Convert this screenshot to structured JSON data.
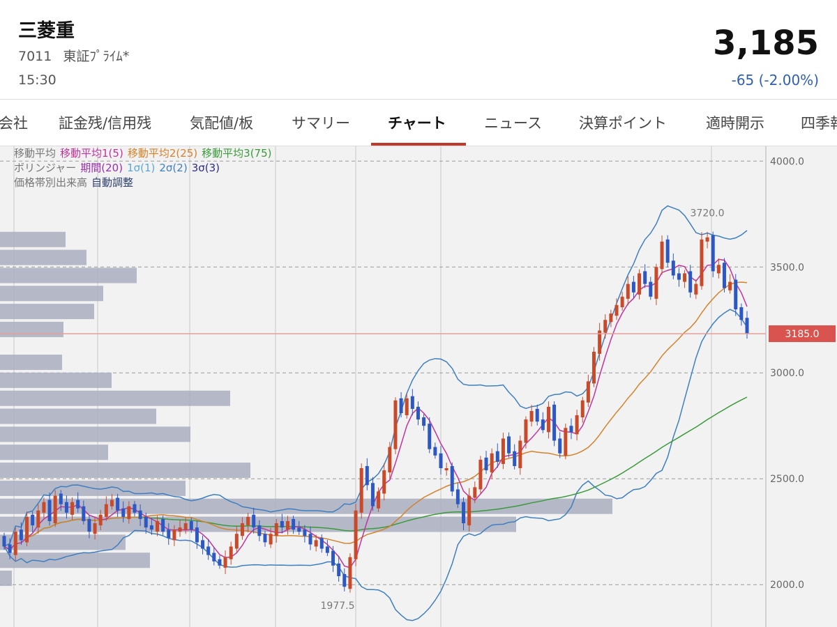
{
  "header": {
    "name": "三菱重",
    "code": "7011",
    "market": "東証ﾌﾟﾗｲﾑ*",
    "time": "15:30",
    "price": "3,185",
    "change": "-65 (-2.00%)"
  },
  "tabs": [
    "会社",
    "証金残/信用残",
    "気配値/板",
    "サマリー",
    "チャート",
    "ニュース",
    "決算ポイント",
    "適時開示",
    "四季報"
  ],
  "active_tab": "チャート",
  "legend": {
    "ma_title": "移動平均",
    "ma1": "移動平均1(5)",
    "ma2": "移動平均2(25)",
    "ma3": "移動平均3(75)",
    "bb_title": "ボリンジャー",
    "bb_period": "期間(20)",
    "bb_s1": "1σ(1)",
    "bb_s2": "2σ(2)",
    "bb_s3": "3σ(3)",
    "vp_title": "価格帯別出来高",
    "vp_mode": "自動調整"
  },
  "colors": {
    "up": "#c94a2a",
    "down": "#2d58c4",
    "ma1": "#c2349a",
    "ma2": "#d4822a",
    "ma3": "#3a9a3a",
    "bollinger": "#3f7fc0",
    "price_line": "#e6a09a",
    "price_tag": "#d9534f",
    "volume_profile": "#a9aebf",
    "change": "#2f5fb3"
  },
  "chart_data": {
    "type": "candlestick",
    "ylim": [
      1800,
      4070
    ],
    "y_ticks": [
      "4000.0",
      "3500.0",
      "3000.0",
      "2500.0",
      "2000.0"
    ],
    "current_price_label": "3185.0",
    "current_price": 3185,
    "high_label": "3720.0",
    "high": 3720,
    "low_label": "1977.5",
    "low": 1977.5,
    "volume_profile": [
      {
        "price": 3630,
        "volume": 94
      },
      {
        "price": 3545,
        "volume": 124
      },
      {
        "price": 3460,
        "volume": 196
      },
      {
        "price": 3375,
        "volume": 148
      },
      {
        "price": 3290,
        "volume": 135
      },
      {
        "price": 3205,
        "volume": 91
      },
      {
        "price": 3050,
        "volume": 89
      },
      {
        "price": 2965,
        "volume": 160
      },
      {
        "price": 2880,
        "volume": 330
      },
      {
        "price": 2795,
        "volume": 224
      },
      {
        "price": 2710,
        "volume": 273
      },
      {
        "price": 2625,
        "volume": 155
      },
      {
        "price": 2540,
        "volume": 359
      },
      {
        "price": 2455,
        "volume": 266
      },
      {
        "price": 2370,
        "volume": 878
      },
      {
        "price": 2285,
        "volume": 740
      },
      {
        "price": 2200,
        "volume": 180
      },
      {
        "price": 2115,
        "volume": 215
      },
      {
        "price": 2030,
        "volume": 17
      }
    ],
    "closes": [
      2180,
      2150,
      2250,
      2210,
      2320,
      2280,
      2350,
      2390,
      2300,
      2420,
      2380,
      2340,
      2390,
      2360,
      2300,
      2250,
      2290,
      2330,
      2380,
      2400,
      2350,
      2320,
      2370,
      2340,
      2310,
      2270,
      2260,
      2300,
      2250,
      2220,
      2260,
      2270,
      2290,
      2260,
      2200,
      2170,
      2140,
      2110,
      2090,
      2130,
      2180,
      2240,
      2290,
      2320,
      2270,
      2230,
      2200,
      2240,
      2290,
      2270,
      2300,
      2260,
      2250,
      2230,
      2190,
      2210,
      2170,
      2150,
      2090,
      2040,
      1990,
      2130,
      2350,
      2550,
      2470,
      2370,
      2440,
      2540,
      2650,
      2870,
      2810,
      2880,
      2830,
      2780,
      2750,
      2640,
      2610,
      2550,
      2550,
      2440,
      2380,
      2290,
      2420,
      2460,
      2590,
      2540,
      2620,
      2580,
      2690,
      2620,
      2560,
      2680,
      2780,
      2820,
      2770,
      2730,
      2840,
      2680,
      2620,
      2740,
      2720,
      2800,
      2870,
      2960,
      3100,
      3200,
      3250,
      3280,
      3320,
      3360,
      3420,
      3380,
      3470,
      3420,
      3360,
      3500,
      3620,
      3520,
      3460,
      3440,
      3470,
      3380,
      3420,
      3630,
      3640,
      3480,
      3510,
      3400,
      3430,
      3300,
      3250,
      3185
    ]
  }
}
